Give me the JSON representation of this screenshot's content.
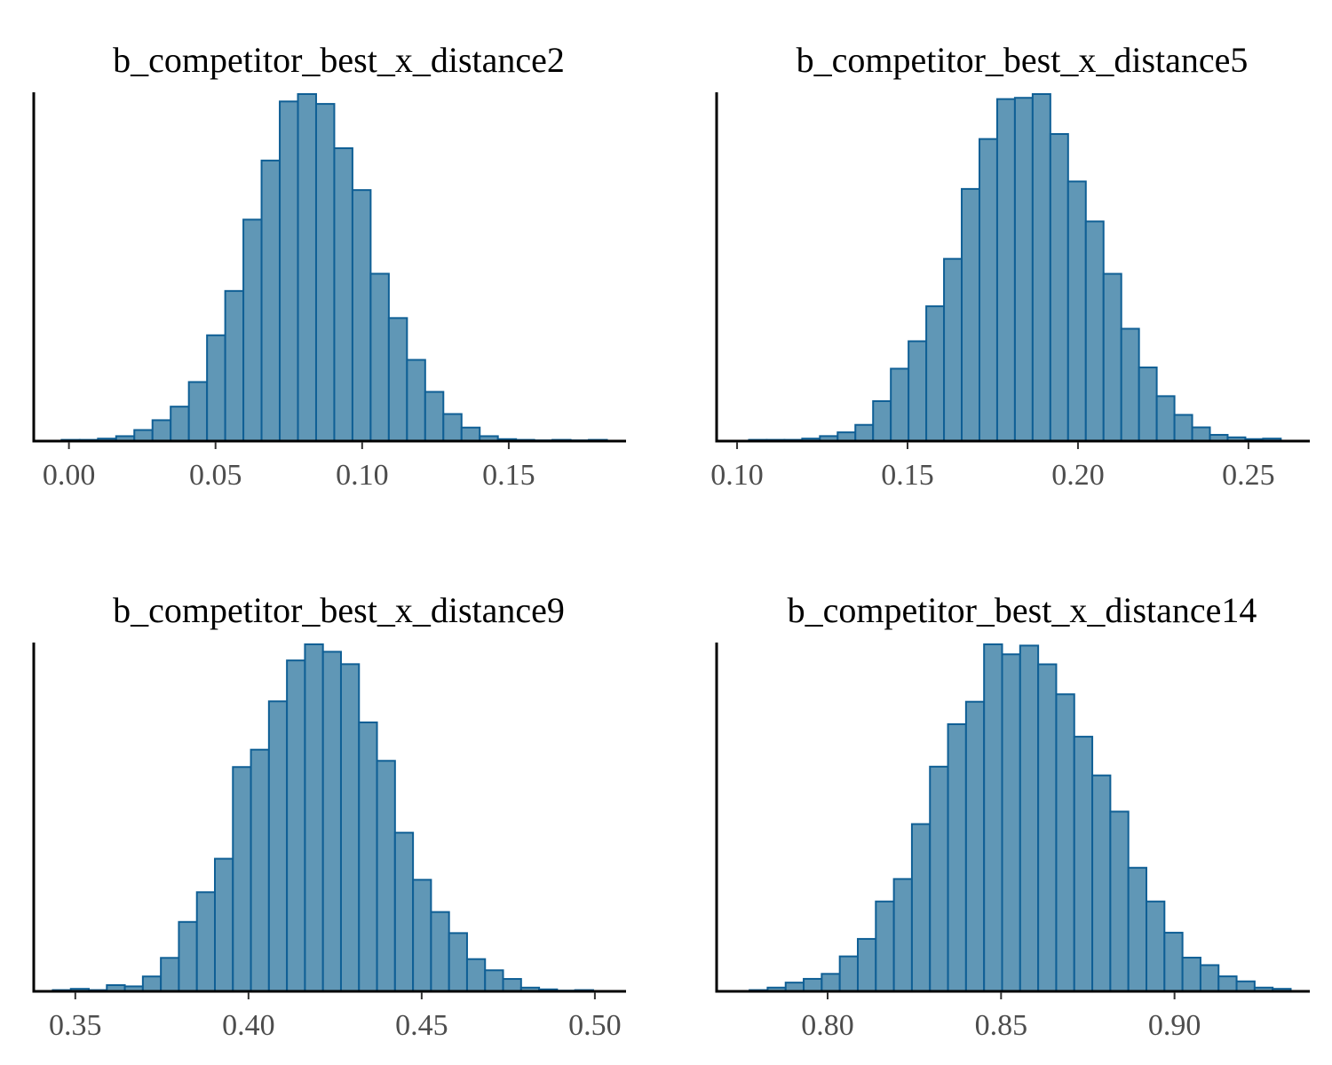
{
  "chart_data": [
    {
      "type": "bar",
      "title": "b_competitor_best_x_distance2",
      "xlabel": "",
      "ylabel": "",
      "xlim": [
        -0.012,
        0.19
      ],
      "xticks": [
        0.0,
        0.05,
        0.1,
        0.15
      ],
      "xtick_labels": [
        "0.00",
        "0.05",
        "0.10",
        "0.15"
      ],
      "bins": [
        {
          "x0": -0.0025,
          "x1": 0.0037,
          "value": 0.5
        },
        {
          "x0": 0.0037,
          "x1": 0.0099,
          "value": 0.5
        },
        {
          "x0": 0.0099,
          "x1": 0.0161,
          "value": 1
        },
        {
          "x0": 0.0161,
          "x1": 0.0223,
          "value": 2
        },
        {
          "x0": 0.0223,
          "x1": 0.0285,
          "value": 4.5
        },
        {
          "x0": 0.0285,
          "x1": 0.0347,
          "value": 8.5
        },
        {
          "x0": 0.0347,
          "x1": 0.0409,
          "value": 14
        },
        {
          "x0": 0.0409,
          "x1": 0.0471,
          "value": 24
        },
        {
          "x0": 0.0471,
          "x1": 0.0533,
          "value": 43
        },
        {
          "x0": 0.0533,
          "x1": 0.0595,
          "value": 61
        },
        {
          "x0": 0.0595,
          "x1": 0.0657,
          "value": 90
        },
        {
          "x0": 0.0657,
          "x1": 0.0719,
          "value": 114
        },
        {
          "x0": 0.0719,
          "x1": 0.0781,
          "value": 138
        },
        {
          "x0": 0.0781,
          "x1": 0.0843,
          "value": 141
        },
        {
          "x0": 0.0843,
          "x1": 0.0905,
          "value": 137
        },
        {
          "x0": 0.0905,
          "x1": 0.0967,
          "value": 119
        },
        {
          "x0": 0.0967,
          "x1": 0.1029,
          "value": 102
        },
        {
          "x0": 0.1029,
          "x1": 0.1091,
          "value": 68
        },
        {
          "x0": 0.1091,
          "x1": 0.1153,
          "value": 50
        },
        {
          "x0": 0.1153,
          "x1": 0.1215,
          "value": 33
        },
        {
          "x0": 0.1215,
          "x1": 0.1277,
          "value": 20
        },
        {
          "x0": 0.1277,
          "x1": 0.1339,
          "value": 11
        },
        {
          "x0": 0.1339,
          "x1": 0.1401,
          "value": 5.5
        },
        {
          "x0": 0.1401,
          "x1": 0.1463,
          "value": 2
        },
        {
          "x0": 0.1463,
          "x1": 0.1525,
          "value": 0.8
        },
        {
          "x0": 0.1525,
          "x1": 0.1587,
          "value": 0.5
        },
        {
          "x0": 0.1587,
          "x1": 0.1649,
          "value": 0.3
        },
        {
          "x0": 0.1649,
          "x1": 0.1711,
          "value": 0.5
        },
        {
          "x0": 0.1711,
          "x1": 0.1773,
          "value": 0.3
        },
        {
          "x0": 0.1773,
          "x1": 0.1835,
          "value": 0.5
        }
      ]
    },
    {
      "type": "bar",
      "title": "b_competitor_best_x_distance5",
      "xlabel": "",
      "ylabel": "",
      "xlim": [
        0.094,
        0.268
      ],
      "xticks": [
        0.1,
        0.15,
        0.2,
        0.25
      ],
      "xtick_labels": [
        "0.10",
        "0.15",
        "0.20",
        "0.25"
      ],
      "bins": [
        {
          "x0": 0.1035,
          "x1": 0.1087,
          "value": 0.5
        },
        {
          "x0": 0.1087,
          "x1": 0.1139,
          "value": 0.5
        },
        {
          "x0": 0.1139,
          "x1": 0.1191,
          "value": 0.5
        },
        {
          "x0": 0.1191,
          "x1": 0.1243,
          "value": 1
        },
        {
          "x0": 0.1243,
          "x1": 0.1295,
          "value": 2
        },
        {
          "x0": 0.1295,
          "x1": 0.1347,
          "value": 3.5
        },
        {
          "x0": 0.1347,
          "x1": 0.1399,
          "value": 6.5
        },
        {
          "x0": 0.1399,
          "x1": 0.1451,
          "value": 16
        },
        {
          "x0": 0.1451,
          "x1": 0.1503,
          "value": 29
        },
        {
          "x0": 0.1503,
          "x1": 0.1555,
          "value": 40
        },
        {
          "x0": 0.1555,
          "x1": 0.1607,
          "value": 54
        },
        {
          "x0": 0.1607,
          "x1": 0.1659,
          "value": 73
        },
        {
          "x0": 0.1659,
          "x1": 0.1711,
          "value": 101
        },
        {
          "x0": 0.1711,
          "x1": 0.1763,
          "value": 121
        },
        {
          "x0": 0.1763,
          "x1": 0.1815,
          "value": 137
        },
        {
          "x0": 0.1815,
          "x1": 0.1867,
          "value": 137.5
        },
        {
          "x0": 0.1867,
          "x1": 0.1919,
          "value": 139
        },
        {
          "x0": 0.1919,
          "x1": 0.1971,
          "value": 123
        },
        {
          "x0": 0.1971,
          "x1": 0.2023,
          "value": 104
        },
        {
          "x0": 0.2023,
          "x1": 0.2075,
          "value": 88
        },
        {
          "x0": 0.2075,
          "x1": 0.2127,
          "value": 67
        },
        {
          "x0": 0.2127,
          "x1": 0.2179,
          "value": 45
        },
        {
          "x0": 0.2179,
          "x1": 0.2231,
          "value": 29.5
        },
        {
          "x0": 0.2231,
          "x1": 0.2283,
          "value": 18
        },
        {
          "x0": 0.2283,
          "x1": 0.2335,
          "value": 10.5
        },
        {
          "x0": 0.2335,
          "x1": 0.2387,
          "value": 5.5
        },
        {
          "x0": 0.2387,
          "x1": 0.2439,
          "value": 2.5
        },
        {
          "x0": 0.2439,
          "x1": 0.2491,
          "value": 1.5
        },
        {
          "x0": 0.2491,
          "x1": 0.2543,
          "value": 0.8
        },
        {
          "x0": 0.2543,
          "x1": 0.2595,
          "value": 1
        }
      ]
    },
    {
      "type": "bar",
      "title": "b_competitor_best_x_distance9",
      "xlabel": "",
      "ylabel": "",
      "xlim": [
        0.338,
        0.509
      ],
      "xticks": [
        0.35,
        0.4,
        0.45,
        0.5
      ],
      "xtick_labels": [
        "0.35",
        "0.40",
        "0.45",
        "0.50"
      ],
      "bins": [
        {
          "x0": 0.3435,
          "x1": 0.3487,
          "value": 0.5
        },
        {
          "x0": 0.3487,
          "x1": 0.3539,
          "value": 1
        },
        {
          "x0": 0.3539,
          "x1": 0.3591,
          "value": 0.5
        },
        {
          "x0": 0.3591,
          "x1": 0.3643,
          "value": 2.5
        },
        {
          "x0": 0.3643,
          "x1": 0.3695,
          "value": 2
        },
        {
          "x0": 0.3695,
          "x1": 0.3747,
          "value": 6
        },
        {
          "x0": 0.3747,
          "x1": 0.3799,
          "value": 13.5
        },
        {
          "x0": 0.3799,
          "x1": 0.3851,
          "value": 28
        },
        {
          "x0": 0.3851,
          "x1": 0.3903,
          "value": 40
        },
        {
          "x0": 0.3903,
          "x1": 0.3955,
          "value": 53.5
        },
        {
          "x0": 0.3955,
          "x1": 0.4007,
          "value": 90.5
        },
        {
          "x0": 0.4007,
          "x1": 0.4059,
          "value": 97.5
        },
        {
          "x0": 0.4059,
          "x1": 0.4111,
          "value": 117
        },
        {
          "x0": 0.4111,
          "x1": 0.4163,
          "value": 133.5
        },
        {
          "x0": 0.4163,
          "x1": 0.4215,
          "value": 140
        },
        {
          "x0": 0.4215,
          "x1": 0.4267,
          "value": 137
        },
        {
          "x0": 0.4267,
          "x1": 0.4319,
          "value": 132
        },
        {
          "x0": 0.4319,
          "x1": 0.4371,
          "value": 108.5
        },
        {
          "x0": 0.4371,
          "x1": 0.4423,
          "value": 93
        },
        {
          "x0": 0.4423,
          "x1": 0.4475,
          "value": 64
        },
        {
          "x0": 0.4475,
          "x1": 0.4527,
          "value": 45
        },
        {
          "x0": 0.4527,
          "x1": 0.4579,
          "value": 32
        },
        {
          "x0": 0.4579,
          "x1": 0.4631,
          "value": 23.5
        },
        {
          "x0": 0.4631,
          "x1": 0.4683,
          "value": 13
        },
        {
          "x0": 0.4683,
          "x1": 0.4735,
          "value": 8.5
        },
        {
          "x0": 0.4735,
          "x1": 0.4787,
          "value": 5
        },
        {
          "x0": 0.4787,
          "x1": 0.4839,
          "value": 1.5
        },
        {
          "x0": 0.4839,
          "x1": 0.4891,
          "value": 0.8
        },
        {
          "x0": 0.4891,
          "x1": 0.4943,
          "value": 0.3
        },
        {
          "x0": 0.4943,
          "x1": 0.4995,
          "value": 0.5
        }
      ]
    },
    {
      "type": "bar",
      "title": "b_competitor_best_x_distance14",
      "xlabel": "",
      "ylabel": "",
      "xlim": [
        0.768,
        0.939
      ],
      "xticks": [
        0.8,
        0.85,
        0.9
      ],
      "xtick_labels": [
        "0.80",
        "0.85",
        "0.90"
      ],
      "bins": [
        {
          "x0": 0.7775,
          "x1": 0.7827,
          "value": 0.5
        },
        {
          "x0": 0.7827,
          "x1": 0.7879,
          "value": 1.5
        },
        {
          "x0": 0.7879,
          "x1": 0.7931,
          "value": 3.5
        },
        {
          "x0": 0.7931,
          "x1": 0.7983,
          "value": 5
        },
        {
          "x0": 0.7983,
          "x1": 0.8035,
          "value": 7
        },
        {
          "x0": 0.8035,
          "x1": 0.8087,
          "value": 14
        },
        {
          "x0": 0.8087,
          "x1": 0.8139,
          "value": 21
        },
        {
          "x0": 0.8139,
          "x1": 0.8191,
          "value": 36
        },
        {
          "x0": 0.8191,
          "x1": 0.8243,
          "value": 45
        },
        {
          "x0": 0.8243,
          "x1": 0.8295,
          "value": 67
        },
        {
          "x0": 0.8295,
          "x1": 0.8347,
          "value": 90
        },
        {
          "x0": 0.8347,
          "x1": 0.8399,
          "value": 107
        },
        {
          "x0": 0.8399,
          "x1": 0.8451,
          "value": 116
        },
        {
          "x0": 0.8451,
          "x1": 0.8503,
          "value": 139
        },
        {
          "x0": 0.8503,
          "x1": 0.8555,
          "value": 135
        },
        {
          "x0": 0.8555,
          "x1": 0.8607,
          "value": 138.5
        },
        {
          "x0": 0.8607,
          "x1": 0.8659,
          "value": 131
        },
        {
          "x0": 0.8659,
          "x1": 0.8711,
          "value": 119
        },
        {
          "x0": 0.8711,
          "x1": 0.8763,
          "value": 102
        },
        {
          "x0": 0.8763,
          "x1": 0.8815,
          "value": 86.5
        },
        {
          "x0": 0.8815,
          "x1": 0.8867,
          "value": 72
        },
        {
          "x0": 0.8867,
          "x1": 0.8919,
          "value": 49.5
        },
        {
          "x0": 0.8919,
          "x1": 0.8971,
          "value": 36
        },
        {
          "x0": 0.8971,
          "x1": 0.9023,
          "value": 23.5
        },
        {
          "x0": 0.9023,
          "x1": 0.9075,
          "value": 13.5
        },
        {
          "x0": 0.9075,
          "x1": 0.9127,
          "value": 10.5
        },
        {
          "x0": 0.9127,
          "x1": 0.9179,
          "value": 6
        },
        {
          "x0": 0.9179,
          "x1": 0.9231,
          "value": 4
        },
        {
          "x0": 0.9231,
          "x1": 0.9283,
          "value": 1.5
        },
        {
          "x0": 0.9283,
          "x1": 0.9335,
          "value": 1
        }
      ]
    }
  ]
}
